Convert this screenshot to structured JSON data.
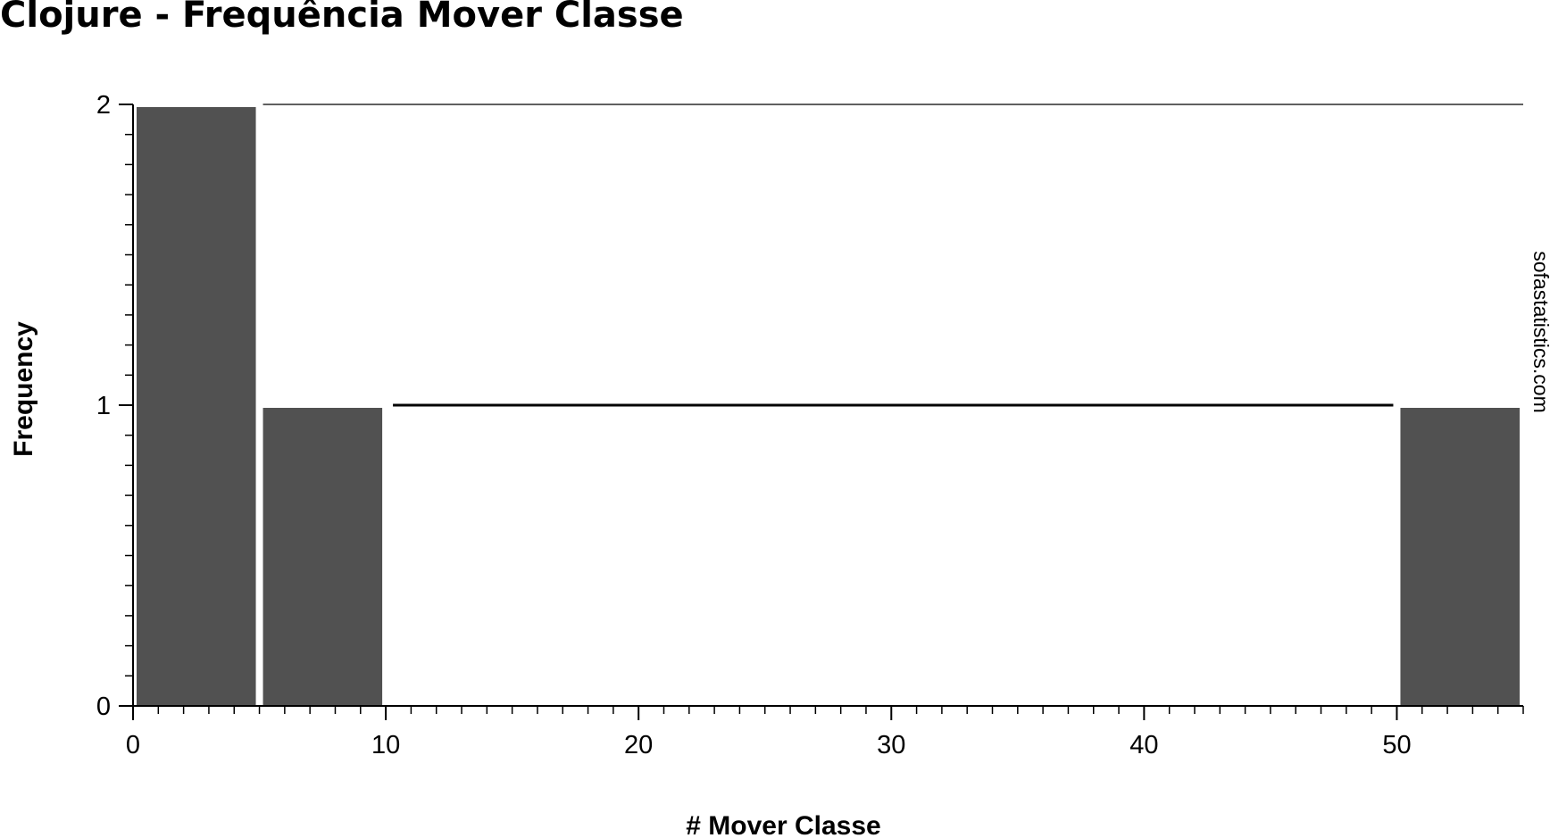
{
  "chart_data": {
    "type": "bar",
    "title": "Clojure - Frequência Mover Classe",
    "xlabel": "# Mover Classe",
    "ylabel": "Frequency",
    "x_ticks": [
      "0",
      "10",
      "20",
      "30",
      "40",
      "50"
    ],
    "y_ticks": [
      "0",
      "1",
      "2"
    ],
    "bins": [
      {
        "start": 0,
        "end": 5,
        "value": 2
      },
      {
        "start": 5,
        "end": 10,
        "value": 1
      },
      {
        "start": 10,
        "end": 50,
        "value": 1
      },
      {
        "start": 50,
        "end": 55,
        "value": 1
      }
    ],
    "ylim": [
      0,
      2
    ],
    "grid": false,
    "legend": "none"
  },
  "watermark": "sofastatistics.com",
  "colors": {
    "bar": "#515151",
    "axis": "#000000",
    "background": "#ffffff"
  }
}
